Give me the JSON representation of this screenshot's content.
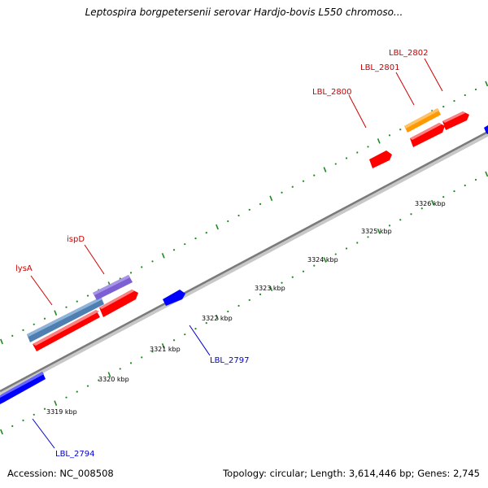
{
  "title": "Leptospira borgpetersenii serovar Hardjo-bovis L550 chromoso...",
  "footer": {
    "accession": "Accession: NC_008508",
    "summary": "Topology: circular; Length: 3,614,446 bp; Genes: 2,745"
  },
  "colors": {
    "forward_gene": "#ff0000",
    "reverse_gene": "#0000ff",
    "operon_blue": "#4f7fb0",
    "operon_purple": "#7b5fd3",
    "operon_orange": "#ff9900",
    "tick": "#1f8a1f",
    "backbone": "#888888",
    "forward_label": "#cc0000",
    "reverse_label": "#0000cc"
  },
  "kbp_labels": [
    "3319 kbp",
    "3320 kbp",
    "3321 kbp",
    "3322 kbp",
    "3323 kbp",
    "3324 kbp",
    "3325 kbp",
    "3326 kbp"
  ],
  "gene_labels": {
    "lysA": "lysA",
    "ispD": "ispD",
    "LBL_2800": "LBL_2800",
    "LBL_2801": "LBL_2801",
    "LBL_2802": "LBL_2802",
    "LBL_2797": "LBL_2797",
    "LBL_2794": "LBL_2794"
  }
}
